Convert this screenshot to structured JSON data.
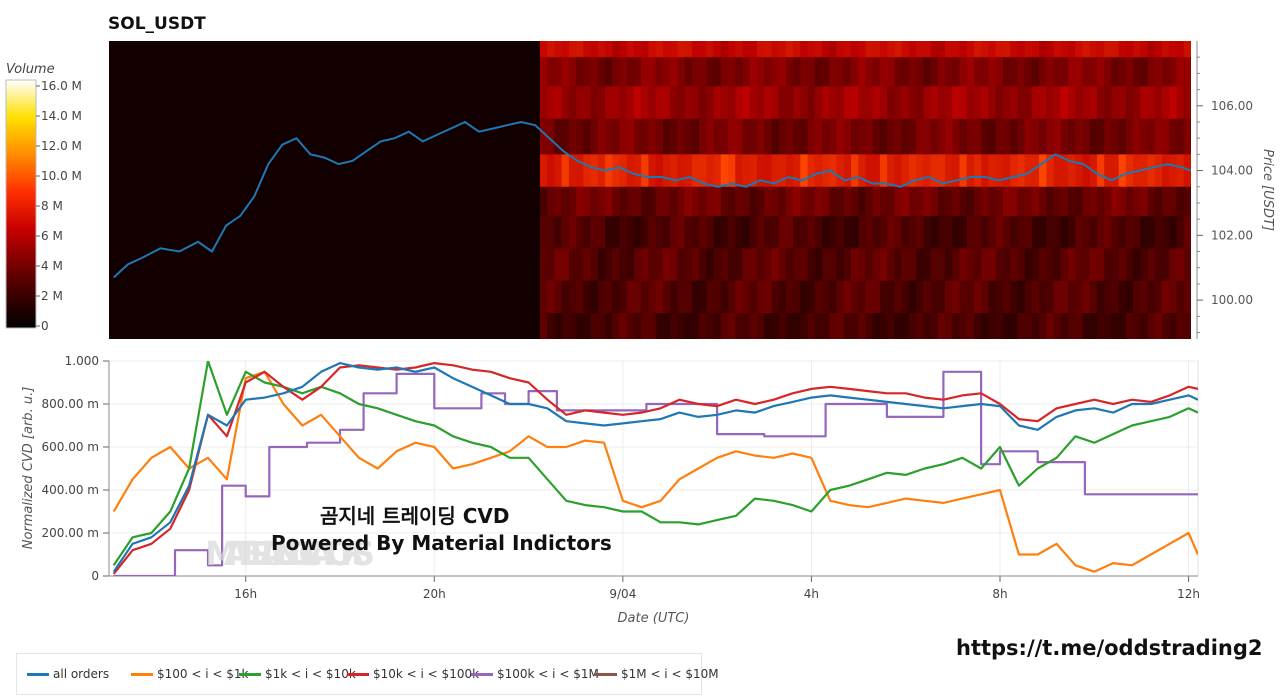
{
  "title": "SOL_USDT",
  "overlay": {
    "line1": "곰지네 트레이딩 CVD",
    "line2": "Powered By Material Indictors"
  },
  "watermark": "MATERIAL INDICATORS",
  "footer_url": "https://t.me/oddstrading2",
  "colorbar": {
    "title": "Volume",
    "ticks": [
      "0",
      "2 M",
      "4 M",
      "6 M",
      "8 M",
      "10.0 M",
      "12.0 M",
      "14.0 M",
      "16.0 M"
    ]
  },
  "colors": {
    "all_orders": "#1f77b4",
    "range_100_1k": "#ff7f0e",
    "range_1k_10k": "#2ca02c",
    "range_10k_100k": "#d62728",
    "range_100k_1M": "#9467bd",
    "range_1M_10M": "#8c564b",
    "heatmap_dark": "#120000",
    "heatmap_hot": "#ff2a00"
  },
  "chart_data": [
    {
      "type": "heatmap",
      "ylabel": "Price [USDT]",
      "ylim": [
        98.8,
        108.0
      ],
      "yticks": [
        "106.00",
        "104.00",
        "102.00",
        "100.00"
      ],
      "ytick_values": [
        106,
        104,
        102,
        100
      ],
      "x_range_hours": [
        13.1,
        36.2
      ],
      "heatmap_start_hour": 22.3,
      "heat_bands": [
        {
          "price_low": 107.5,
          "price_high": 108.0,
          "level": 0.55
        },
        {
          "price_low": 106.6,
          "price_high": 107.5,
          "level": 0.28
        },
        {
          "price_low": 105.6,
          "price_high": 106.6,
          "level": 0.38
        },
        {
          "price_low": 104.5,
          "price_high": 105.6,
          "level": 0.25
        },
        {
          "price_low": 103.5,
          "price_high": 104.5,
          "level": 0.72
        },
        {
          "price_low": 102.6,
          "price_high": 103.5,
          "level": 0.22
        },
        {
          "price_low": 101.6,
          "price_high": 102.6,
          "level": 0.12
        },
        {
          "price_low": 100.6,
          "price_high": 101.6,
          "level": 0.16
        },
        {
          "price_low": 99.6,
          "price_high": 100.6,
          "level": 0.14
        },
        {
          "price_low": 98.8,
          "price_high": 99.6,
          "level": 0.1
        }
      ],
      "price_series": {
        "name": "Price",
        "points": [
          [
            13.2,
            100.7
          ],
          [
            13.5,
            101.1
          ],
          [
            13.8,
            101.3
          ],
          [
            14.2,
            101.6
          ],
          [
            14.6,
            101.5
          ],
          [
            15.0,
            101.8
          ],
          [
            15.3,
            101.5
          ],
          [
            15.6,
            102.3
          ],
          [
            15.9,
            102.6
          ],
          [
            16.2,
            103.2
          ],
          [
            16.5,
            104.2
          ],
          [
            16.8,
            104.8
          ],
          [
            17.1,
            105.0
          ],
          [
            17.4,
            104.5
          ],
          [
            17.7,
            104.4
          ],
          [
            18.0,
            104.2
          ],
          [
            18.3,
            104.3
          ],
          [
            18.6,
            104.6
          ],
          [
            18.9,
            104.9
          ],
          [
            19.2,
            105.0
          ],
          [
            19.5,
            105.2
          ],
          [
            19.8,
            104.9
          ],
          [
            20.1,
            105.1
          ],
          [
            20.4,
            105.3
          ],
          [
            20.7,
            105.5
          ],
          [
            21.0,
            105.2
          ],
          [
            21.3,
            105.3
          ],
          [
            21.6,
            105.4
          ],
          [
            21.9,
            105.5
          ],
          [
            22.2,
            105.4
          ],
          [
            22.5,
            105.0
          ],
          [
            22.8,
            104.6
          ],
          [
            23.1,
            104.3
          ],
          [
            23.4,
            104.1
          ],
          [
            23.7,
            104.0
          ],
          [
            24.0,
            104.1
          ],
          [
            24.3,
            103.9
          ],
          [
            24.6,
            103.8
          ],
          [
            24.9,
            103.8
          ],
          [
            25.2,
            103.7
          ],
          [
            25.5,
            103.8
          ],
          [
            25.8,
            103.6
          ],
          [
            26.1,
            103.5
          ],
          [
            26.4,
            103.6
          ],
          [
            26.7,
            103.5
          ],
          [
            27.0,
            103.7
          ],
          [
            27.3,
            103.6
          ],
          [
            27.6,
            103.8
          ],
          [
            27.9,
            103.7
          ],
          [
            28.2,
            103.9
          ],
          [
            28.5,
            104.0
          ],
          [
            28.8,
            103.7
          ],
          [
            29.1,
            103.8
          ],
          [
            29.4,
            103.6
          ],
          [
            29.7,
            103.6
          ],
          [
            30.0,
            103.5
          ],
          [
            30.3,
            103.7
          ],
          [
            30.6,
            103.8
          ],
          [
            30.9,
            103.6
          ],
          [
            31.2,
            103.7
          ],
          [
            31.5,
            103.8
          ],
          [
            31.8,
            103.8
          ],
          [
            32.1,
            103.7
          ],
          [
            32.4,
            103.8
          ],
          [
            32.7,
            103.9
          ],
          [
            33.0,
            104.2
          ],
          [
            33.3,
            104.5
          ],
          [
            33.6,
            104.3
          ],
          [
            33.9,
            104.2
          ],
          [
            34.2,
            103.9
          ],
          [
            34.5,
            103.7
          ],
          [
            34.8,
            103.9
          ],
          [
            35.1,
            104.0
          ],
          [
            35.4,
            104.1
          ],
          [
            35.7,
            104.2
          ],
          [
            36.0,
            104.1
          ],
          [
            36.2,
            104.0
          ]
        ]
      }
    },
    {
      "type": "line",
      "xlabel": "Date (UTC)",
      "ylabel": "Normalized CVD [arb. u.]",
      "ylim": [
        0,
        1.0
      ],
      "yticks": [
        "0",
        "200.00 m",
        "400.00 m",
        "600.00 m",
        "800.00 m",
        "1.000"
      ],
      "ytick_values": [
        0,
        0.2,
        0.4,
        0.6,
        0.8,
        1.0
      ],
      "x_range_hours": [
        13.1,
        36.2
      ],
      "xticks": [
        "16h",
        "20h",
        "9/04",
        "4h",
        "8h",
        "12h"
      ],
      "xtick_hours": [
        16,
        20,
        24,
        28,
        32,
        36
      ],
      "grid": true,
      "legend_position": "bottom",
      "series": [
        {
          "name": "all orders",
          "x": [
            13.2,
            13.6,
            14.0,
            14.4,
            14.8,
            15.2,
            15.6,
            16.0,
            16.4,
            16.8,
            17.2,
            17.6,
            18.0,
            18.4,
            18.8,
            19.2,
            19.6,
            20.0,
            20.4,
            20.8,
            21.2,
            21.6,
            22.0,
            22.4,
            22.8,
            23.2,
            23.6,
            24.0,
            24.4,
            24.8,
            25.2,
            25.6,
            26.0,
            26.4,
            26.8,
            27.2,
            27.6,
            28.0,
            28.4,
            28.8,
            29.2,
            29.6,
            30.0,
            30.4,
            30.8,
            31.2,
            31.6,
            32.0,
            32.4,
            32.8,
            33.2,
            33.6,
            34.0,
            34.4,
            34.8,
            35.2,
            35.6,
            36.0,
            36.2
          ],
          "y": [
            0.02,
            0.15,
            0.18,
            0.25,
            0.42,
            0.75,
            0.7,
            0.82,
            0.83,
            0.85,
            0.88,
            0.95,
            0.99,
            0.97,
            0.96,
            0.97,
            0.95,
            0.97,
            0.92,
            0.88,
            0.84,
            0.8,
            0.8,
            0.78,
            0.72,
            0.71,
            0.7,
            0.71,
            0.72,
            0.73,
            0.76,
            0.74,
            0.75,
            0.77,
            0.76,
            0.79,
            0.81,
            0.83,
            0.84,
            0.83,
            0.82,
            0.81,
            0.8,
            0.79,
            0.78,
            0.79,
            0.8,
            0.79,
            0.7,
            0.68,
            0.74,
            0.77,
            0.78,
            0.76,
            0.8,
            0.8,
            0.82,
            0.84,
            0.82
          ]
        },
        {
          "name": "$100 < i < $1k",
          "x": [
            13.2,
            13.6,
            14.0,
            14.4,
            14.8,
            15.2,
            15.6,
            16.0,
            16.4,
            16.8,
            17.2,
            17.6,
            18.0,
            18.4,
            18.8,
            19.2,
            19.6,
            20.0,
            20.4,
            20.8,
            21.2,
            21.6,
            22.0,
            22.4,
            22.8,
            23.2,
            23.6,
            24.0,
            24.4,
            24.8,
            25.2,
            25.6,
            26.0,
            26.4,
            26.8,
            27.2,
            27.6,
            28.0,
            28.4,
            28.8,
            29.2,
            29.6,
            30.0,
            30.4,
            30.8,
            31.2,
            31.6,
            32.0,
            32.4,
            32.8,
            33.2,
            33.6,
            34.0,
            34.4,
            34.8,
            35.2,
            35.6,
            36.0,
            36.2
          ],
          "y": [
            0.3,
            0.45,
            0.55,
            0.6,
            0.5,
            0.55,
            0.45,
            0.92,
            0.95,
            0.8,
            0.7,
            0.75,
            0.65,
            0.55,
            0.5,
            0.58,
            0.62,
            0.6,
            0.5,
            0.52,
            0.55,
            0.58,
            0.65,
            0.6,
            0.6,
            0.63,
            0.62,
            0.35,
            0.32,
            0.35,
            0.45,
            0.5,
            0.55,
            0.58,
            0.56,
            0.55,
            0.57,
            0.55,
            0.35,
            0.33,
            0.32,
            0.34,
            0.36,
            0.35,
            0.34,
            0.36,
            0.38,
            0.4,
            0.1,
            0.1,
            0.15,
            0.05,
            0.02,
            0.06,
            0.05,
            0.1,
            0.15,
            0.2,
            0.1
          ]
        },
        {
          "name": "$1k < i < $10k",
          "x": [
            13.2,
            13.6,
            14.0,
            14.4,
            14.8,
            15.2,
            15.6,
            16.0,
            16.4,
            16.8,
            17.2,
            17.6,
            18.0,
            18.4,
            18.8,
            19.2,
            19.6,
            20.0,
            20.4,
            20.8,
            21.2,
            21.6,
            22.0,
            22.4,
            22.8,
            23.2,
            23.6,
            24.0,
            24.4,
            24.8,
            25.2,
            25.6,
            26.0,
            26.4,
            26.8,
            27.2,
            27.6,
            28.0,
            28.4,
            28.8,
            29.2,
            29.6,
            30.0,
            30.4,
            30.8,
            31.2,
            31.6,
            32.0,
            32.4,
            32.8,
            33.2,
            33.6,
            34.0,
            34.4,
            34.8,
            35.2,
            35.6,
            36.0,
            36.2
          ],
          "y": [
            0.05,
            0.18,
            0.2,
            0.3,
            0.5,
            1.0,
            0.75,
            0.95,
            0.9,
            0.88,
            0.85,
            0.88,
            0.85,
            0.8,
            0.78,
            0.75,
            0.72,
            0.7,
            0.65,
            0.62,
            0.6,
            0.55,
            0.55,
            0.45,
            0.35,
            0.33,
            0.32,
            0.3,
            0.3,
            0.25,
            0.25,
            0.24,
            0.26,
            0.28,
            0.36,
            0.35,
            0.33,
            0.3,
            0.4,
            0.42,
            0.45,
            0.48,
            0.47,
            0.5,
            0.52,
            0.55,
            0.5,
            0.6,
            0.42,
            0.5,
            0.55,
            0.65,
            0.62,
            0.66,
            0.7,
            0.72,
            0.74,
            0.78,
            0.76
          ]
        },
        {
          "name": "$10k < i < $100k",
          "x": [
            13.2,
            13.6,
            14.0,
            14.4,
            14.8,
            15.2,
            15.6,
            16.0,
            16.4,
            16.8,
            17.2,
            17.6,
            18.0,
            18.4,
            18.8,
            19.2,
            19.6,
            20.0,
            20.4,
            20.8,
            21.2,
            21.6,
            22.0,
            22.4,
            22.8,
            23.2,
            23.6,
            24.0,
            24.4,
            24.8,
            25.2,
            25.6,
            26.0,
            26.4,
            26.8,
            27.2,
            27.6,
            28.0,
            28.4,
            28.8,
            29.2,
            29.6,
            30.0,
            30.4,
            30.8,
            31.2,
            31.6,
            32.0,
            32.4,
            32.8,
            33.2,
            33.6,
            34.0,
            34.4,
            34.8,
            35.2,
            35.6,
            36.0,
            36.2
          ],
          "y": [
            0.01,
            0.12,
            0.15,
            0.22,
            0.4,
            0.75,
            0.65,
            0.9,
            0.95,
            0.88,
            0.82,
            0.88,
            0.97,
            0.98,
            0.97,
            0.96,
            0.97,
            0.99,
            0.98,
            0.96,
            0.95,
            0.92,
            0.9,
            0.82,
            0.75,
            0.77,
            0.76,
            0.75,
            0.76,
            0.78,
            0.82,
            0.8,
            0.79,
            0.82,
            0.8,
            0.82,
            0.85,
            0.87,
            0.88,
            0.87,
            0.86,
            0.85,
            0.85,
            0.83,
            0.82,
            0.84,
            0.85,
            0.8,
            0.73,
            0.72,
            0.78,
            0.8,
            0.82,
            0.8,
            0.82,
            0.81,
            0.84,
            0.88,
            0.87
          ]
        },
        {
          "name": "$100k < i < $1M",
          "x": [
            13.2,
            14.5,
            14.5,
            15.2,
            15.2,
            15.5,
            15.5,
            16.0,
            16.0,
            16.5,
            16.5,
            17.3,
            17.3,
            18.0,
            18.0,
            18.5,
            18.5,
            19.2,
            19.2,
            20.0,
            20.0,
            21.0,
            21.0,
            21.5,
            21.5,
            22.0,
            22.0,
            22.6,
            22.6,
            24.5,
            24.5,
            26.0,
            26.0,
            27.0,
            27.0,
            28.3,
            28.3,
            29.6,
            29.6,
            30.8,
            30.8,
            31.6,
            31.6,
            32.0,
            32.0,
            32.8,
            32.8,
            33.8,
            33.8,
            36.2
          ],
          "y": [
            0,
            0,
            0.12,
            0.12,
            0.05,
            0.05,
            0.42,
            0.42,
            0.37,
            0.37,
            0.6,
            0.6,
            0.62,
            0.62,
            0.68,
            0.68,
            0.85,
            0.85,
            0.94,
            0.94,
            0.78,
            0.78,
            0.85,
            0.85,
            0.8,
            0.8,
            0.86,
            0.86,
            0.77,
            0.77,
            0.8,
            0.8,
            0.66,
            0.66,
            0.65,
            0.65,
            0.8,
            0.8,
            0.74,
            0.74,
            0.95,
            0.95,
            0.52,
            0.52,
            0.58,
            0.58,
            0.53,
            0.53,
            0.38,
            0.38
          ]
        },
        {
          "name": "$1M < i < $10M",
          "x": [],
          "y": []
        }
      ]
    }
  ]
}
